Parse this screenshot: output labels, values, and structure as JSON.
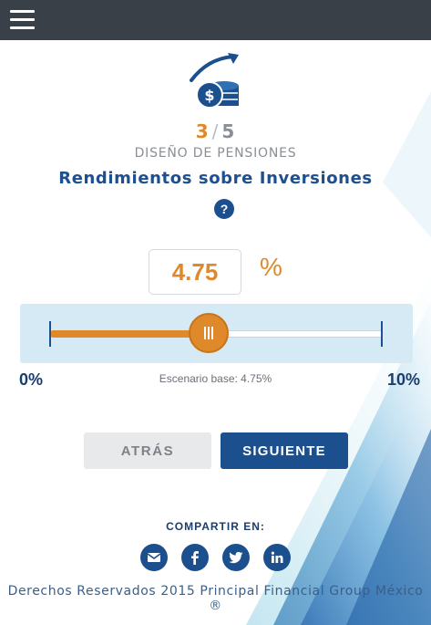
{
  "header": {
    "menu_icon": "hamburger-menu-icon"
  },
  "hero": {
    "icon": "growth-coins-icon"
  },
  "progress": {
    "current": "3",
    "separator": "/",
    "total": "5"
  },
  "section": {
    "title": "DISEÑO DE PENSIONES",
    "subtitle": "Rendimientos sobre Inversiones"
  },
  "help": {
    "label": "?"
  },
  "rate": {
    "value": "4.75",
    "unit": "%",
    "min_label": "0%",
    "max_label": "10%",
    "min": 0,
    "max": 10,
    "current": 4.75,
    "base_text": "Escenario base: 4.75%"
  },
  "buttons": {
    "back": "ATRÁS",
    "next": "SIGUIENTE"
  },
  "share": {
    "label": "COMPARTIR EN:",
    "icons": [
      "mail-icon",
      "facebook-icon",
      "twitter-icon",
      "linkedin-icon"
    ]
  },
  "footer": {
    "text": "Derechos Reservados 2015 Principal Financial Group México ®"
  },
  "colors": {
    "accent": "#e0892a",
    "primary": "#1b4f8d",
    "header_bg": "#3a4048",
    "slider_panel": "#d6eaf6"
  }
}
